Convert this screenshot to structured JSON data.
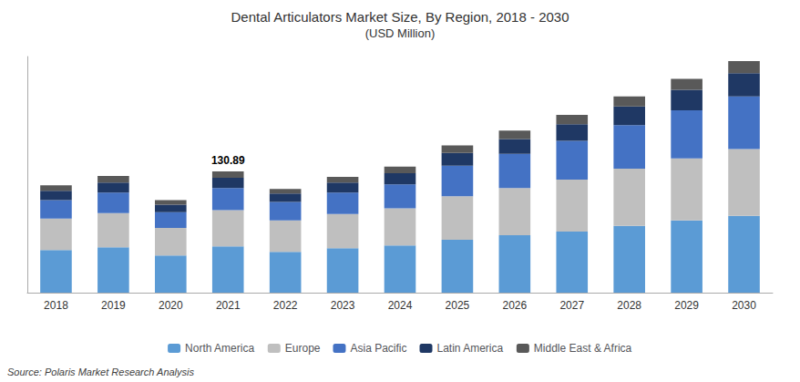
{
  "chart_data": {
    "type": "bar",
    "title": "Dental Articulators Market Size, By Region, 2018 - 2030",
    "subtitle": "(USD Million)",
    "categories": [
      "2018",
      "2019",
      "2020",
      "2021",
      "2022",
      "2023",
      "2024",
      "2025",
      "2026",
      "2027",
      "2028",
      "2029",
      "2030"
    ],
    "series": [
      {
        "name": "North America",
        "color": "#5B9BD5",
        "values": [
          46,
          49,
          40,
          50,
          44,
          48,
          51,
          57,
          62,
          66,
          72,
          78,
          83
        ]
      },
      {
        "name": "Europe",
        "color": "#BFBFBF",
        "values": [
          34,
          37,
          30,
          39,
          34,
          37,
          40,
          47,
          51,
          56,
          62,
          67,
          72
        ]
      },
      {
        "name": "Asia Pacific",
        "color": "#4472C4",
        "values": [
          20,
          22,
          17,
          24,
          20,
          23,
          26,
          33,
          37,
          42,
          47,
          52,
          57
        ]
      },
      {
        "name": "Latin America",
        "color": "#1F3864",
        "values": [
          10,
          11,
          8,
          11,
          9,
          11,
          12,
          14,
          16,
          18,
          20,
          22,
          25
        ]
      },
      {
        "name": "Middle East & Africa",
        "color": "#595959",
        "values": [
          6,
          7,
          5,
          7,
          5,
          6,
          7,
          8,
          9,
          10,
          11,
          12,
          13
        ]
      }
    ],
    "annotations": [
      {
        "text": "130.89",
        "category": "2021"
      },
      {
        "text": "Source: Polaris Market Research Analysis"
      }
    ],
    "ylim": [
      0,
      255
    ],
    "stacked": true,
    "grid": false,
    "legend": "bottom",
    "tick_labels": "x"
  }
}
